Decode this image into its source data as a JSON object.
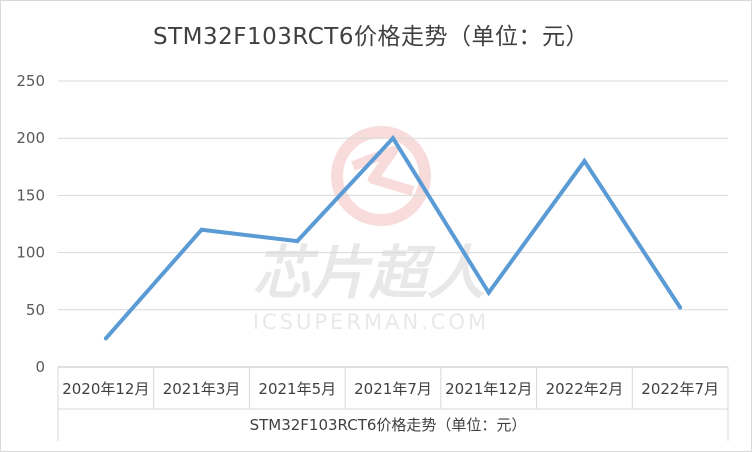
{
  "chart_data": {
    "type": "line",
    "title": "STM32F103RCT6价格走势（单位：元）",
    "categories": [
      "2020年12月",
      "2021年3月",
      "2021年5月",
      "2021年7月",
      "2021年12月",
      "2022年2月",
      "2022年7月"
    ],
    "series": [
      {
        "name": "STM32F103RCT6价格走势（单位：元）",
        "values": [
          25,
          120,
          110,
          200,
          65,
          180,
          52
        ],
        "color": "#5b9bd5"
      }
    ],
    "ylim": [
      0,
      250
    ],
    "yticks": [
      0,
      50,
      100,
      150,
      200,
      250
    ],
    "grid": true,
    "legend_position": "bottom"
  },
  "watermark": {
    "text_cn": "芯片超人",
    "text_en": "ICSUPERMAN.COM"
  }
}
